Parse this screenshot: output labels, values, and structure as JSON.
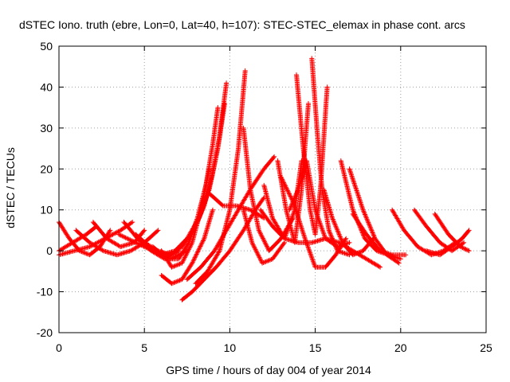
{
  "chart_data": {
    "type": "scatter",
    "title": "dSTEC Iono. truth (ebre, Lon=0, Lat=40, h=107): STEC-STEC_elemax in phase cont. arcs",
    "xlabel": "GPS time / hours of day 004 of year 2014",
    "ylabel": "dSTEC  / TECUs",
    "xlim": [
      0,
      25
    ],
    "ylim": [
      -20,
      50
    ],
    "xticks": [
      0,
      5,
      10,
      15,
      20,
      25
    ],
    "yticks": [
      -20,
      -10,
      0,
      10,
      20,
      30,
      40,
      50
    ],
    "grid": true,
    "marker": "plus",
    "color": "#ff0000",
    "series": [
      {
        "x": [
          0.0,
          0.6,
          1.2,
          1.8,
          2.4,
          3.0
        ],
        "y": [
          7,
          3,
          0,
          -1,
          1,
          5
        ]
      },
      {
        "x": [
          0.0,
          0.8,
          1.6,
          2.2
        ],
        "y": [
          0,
          2,
          4,
          6
        ]
      },
      {
        "x": [
          0.0,
          0.9,
          1.8,
          2.7,
          3.6,
          4.3
        ],
        "y": [
          -1,
          0,
          1,
          3,
          5,
          7
        ]
      },
      {
        "x": [
          1.0,
          1.8,
          2.6,
          3.4,
          4.2,
          5.0,
          5.8
        ],
        "y": [
          5,
          2,
          0,
          -1,
          0,
          2,
          5
        ]
      },
      {
        "x": [
          2.0,
          2.8,
          3.6,
          4.4,
          5.0
        ],
        "y": [
          7,
          3,
          1,
          2,
          5
        ]
      },
      {
        "x": [
          3.8,
          4.6,
          5.4,
          6.2,
          7.0
        ],
        "y": [
          7,
          3,
          0,
          -2,
          0
        ]
      },
      {
        "x": [
          3.5,
          4.5,
          5.5,
          6.5,
          7.5
        ],
        "y": [
          4,
          2,
          0,
          -2,
          0
        ]
      },
      {
        "x": [
          4.5,
          5.3,
          6.0,
          6.8,
          7.5,
          8.2,
          8.8,
          9.3,
          9.7
        ],
        "y": [
          4,
          1,
          -1,
          0,
          3,
          8,
          15,
          25,
          36
        ]
      },
      {
        "x": [
          5.0,
          5.8,
          6.5,
          7.2,
          7.9,
          8.5,
          9.0,
          9.4,
          9.8
        ],
        "y": [
          2,
          0,
          -1,
          1,
          5,
          11,
          19,
          28,
          41
        ]
      },
      {
        "x": [
          5.5,
          6.3,
          7.0,
          7.6,
          8.1,
          8.6,
          9.0,
          9.3
        ],
        "y": [
          1,
          -2,
          -2,
          2,
          8,
          16,
          26,
          35
        ]
      },
      {
        "x": [
          6.0,
          6.6,
          7.2,
          7.8,
          8.3,
          8.8
        ],
        "y": [
          0,
          -4,
          -3,
          2,
          10,
          20
        ]
      },
      {
        "x": [
          6.0,
          6.6,
          7.2,
          7.8,
          8.5,
          9.0
        ],
        "y": [
          -6,
          -8,
          -7,
          -3,
          3,
          10
        ]
      },
      {
        "x": [
          7.2,
          7.8,
          8.5,
          9.2,
          10.0,
          10.8,
          11.5,
          12.0
        ],
        "y": [
          -12,
          -10,
          -7,
          -4,
          0,
          5,
          10,
          13
        ]
      },
      {
        "x": [
          8.0,
          8.7,
          9.4,
          10.0,
          10.5,
          10.9
        ],
        "y": [
          -8,
          -5,
          0,
          10,
          25,
          44
        ]
      },
      {
        "x": [
          7.5,
          8.3,
          9.1,
          9.8,
          10.5,
          11.2,
          12.0,
          12.6
        ],
        "y": [
          -7,
          -4,
          0,
          5,
          10,
          15,
          20,
          23
        ]
      },
      {
        "x": [
          8.8,
          9.6,
          10.4,
          11.2,
          12.0
        ],
        "y": [
          14,
          11,
          11,
          10,
          8
        ]
      },
      {
        "x": [
          10.8,
          11.2,
          11.7,
          12.3,
          13.0,
          13.7
        ],
        "y": [
          30,
          15,
          5,
          0,
          3,
          8
        ]
      },
      {
        "x": [
          10.8,
          11.3,
          11.9,
          12.5,
          13.2
        ],
        "y": [
          10,
          2,
          -3,
          -2,
          2
        ]
      },
      {
        "x": [
          11.8,
          12.5,
          13.2,
          14.0,
          14.8,
          15.6,
          16.4,
          17.2,
          18.0,
          18.8
        ],
        "y": [
          10,
          6,
          3,
          2,
          2,
          3,
          2,
          0,
          -2,
          -4
        ]
      },
      {
        "x": [
          12.0,
          12.5,
          13.2,
          13.8,
          14.2
        ],
        "y": [
          16,
          8,
          3,
          10,
          22
        ]
      },
      {
        "x": [
          12.8,
          13.3,
          13.8,
          14.2,
          14.6
        ],
        "y": [
          22,
          10,
          2,
          15,
          36
        ]
      },
      {
        "x": [
          13.5,
          14.0,
          14.5,
          15.0,
          15.6,
          16.3,
          17.0
        ],
        "y": [
          10,
          15,
          22,
          10,
          3,
          1,
          2
        ]
      },
      {
        "x": [
          13.0,
          13.7,
          14.4,
          15.0,
          15.6,
          16.2,
          16.8
        ],
        "y": [
          18,
          12,
          3,
          -4,
          -4,
          -1,
          3
        ]
      },
      {
        "x": [
          13.9,
          14.3,
          14.7,
          15.0,
          15.3,
          15.7
        ],
        "y": [
          43,
          25,
          10,
          4,
          15,
          40
        ]
      },
      {
        "x": [
          14.8,
          15.1,
          15.4,
          15.8,
          16.3,
          17.0
        ],
        "y": [
          47,
          30,
          15,
          5,
          0,
          -1
        ]
      },
      {
        "x": [
          15.5,
          16.0,
          16.6,
          17.2,
          17.8,
          18.4
        ],
        "y": [
          15,
          8,
          2,
          -1,
          0,
          3
        ]
      },
      {
        "x": [
          16.5,
          17.2,
          17.9,
          18.6,
          19.3,
          20.0
        ],
        "y": [
          22,
          10,
          3,
          0,
          -1,
          -2
        ]
      },
      {
        "x": [
          17.0,
          17.8,
          18.5,
          19.2,
          19.9
        ],
        "y": [
          20,
          10,
          3,
          -1,
          -3
        ]
      },
      {
        "x": [
          17.2,
          18.0,
          18.8,
          19.5,
          20.3
        ],
        "y": [
          9,
          4,
          0,
          -1,
          -1
        ]
      },
      {
        "x": [
          19.5,
          20.2,
          21.0,
          21.8,
          22.5,
          23.2
        ],
        "y": [
          10,
          5,
          1,
          -1,
          0,
          2
        ]
      },
      {
        "x": [
          20.8,
          21.5,
          22.3,
          23.0,
          23.7
        ],
        "y": [
          10,
          6,
          2,
          0,
          2
        ]
      },
      {
        "x": [
          22.0,
          22.8,
          23.5,
          24.0
        ],
        "y": [
          9,
          4,
          1,
          0
        ]
      },
      {
        "x": [
          21.5,
          22.3,
          23.0,
          23.6,
          24.0
        ],
        "y": [
          0,
          -1,
          1,
          3,
          5
        ]
      }
    ]
  }
}
